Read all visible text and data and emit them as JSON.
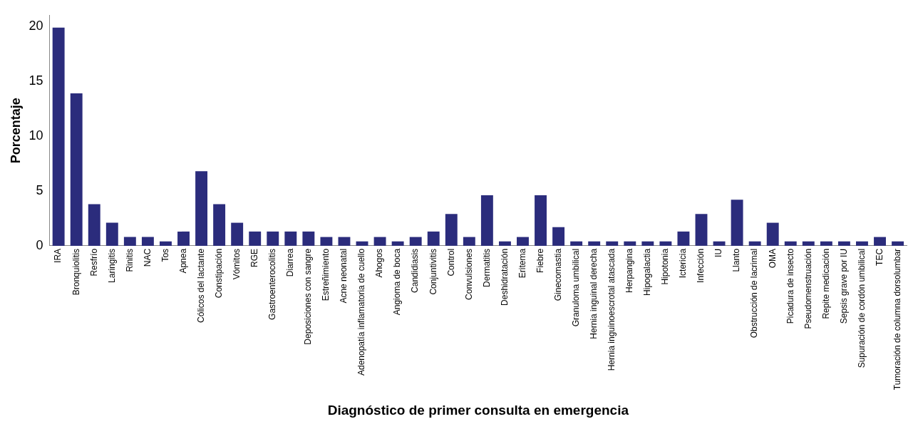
{
  "chart_data": {
    "type": "bar",
    "xlabel": "Diagnóstico de primer consulta en emergencia",
    "ylabel": "Porcentaje",
    "categories": [
      "IRA",
      "Bronquiolitis",
      "Resfrío",
      "Laringitis",
      "Rinitis",
      "NAC",
      "Tos",
      "Apnea",
      "Cólicos del lactante",
      "Constipación",
      "Vómitos",
      "RGE",
      "Gastroenterocolitis",
      "Diarrea",
      "Deposiciones con sangre",
      "Estreñimiento",
      "Acne neonatal",
      "Adenopatía inflamatoria de cuello",
      "Ahogos",
      "Angioma de boca",
      "Candidiasis",
      "Conjuntivitis",
      "Control",
      "Convulsiones",
      "Dermatitis",
      "Deshidratación",
      "Eritema",
      "Fiebre",
      "Ginecomastia",
      "Granuloma umbilical",
      "Hernia inguinal derecha",
      "Hernia inguinoescrotal atascada",
      "Herpangina",
      "Hipogalactia",
      "Hipotonia",
      "Ictericia",
      "Infección",
      "IU",
      "Llanto",
      "Obstrucción de lacrimal",
      "OMA",
      "Picadura de insecto",
      "Pseudomenstruación",
      "Repite medicación",
      "Sepsis grave por IU",
      "Supuración de cordón umbilical",
      "TEC",
      "Tumoración de columna dorsolumbar"
    ],
    "values": [
      19.9,
      13.9,
      3.8,
      2.1,
      0.8,
      0.8,
      0.4,
      1.3,
      6.8,
      3.8,
      2.1,
      1.3,
      1.3,
      1.3,
      1.3,
      0.8,
      0.8,
      0.4,
      0.8,
      0.4,
      0.8,
      1.3,
      2.9,
      0.8,
      4.6,
      0.4,
      0.8,
      4.6,
      1.7,
      0.4,
      0.4,
      0.4,
      0.4,
      0.4,
      0.4,
      1.3,
      2.9,
      0.4,
      4.2,
      0.4,
      2.1,
      0.4,
      0.4,
      0.4,
      0.4,
      0.4,
      0.8,
      0.4
    ],
    "color": "#2b2c7c",
    "ylim": [
      0,
      21
    ],
    "yticks": [
      0,
      5,
      10,
      15,
      20
    ],
    "grid": false,
    "legend": false
  }
}
